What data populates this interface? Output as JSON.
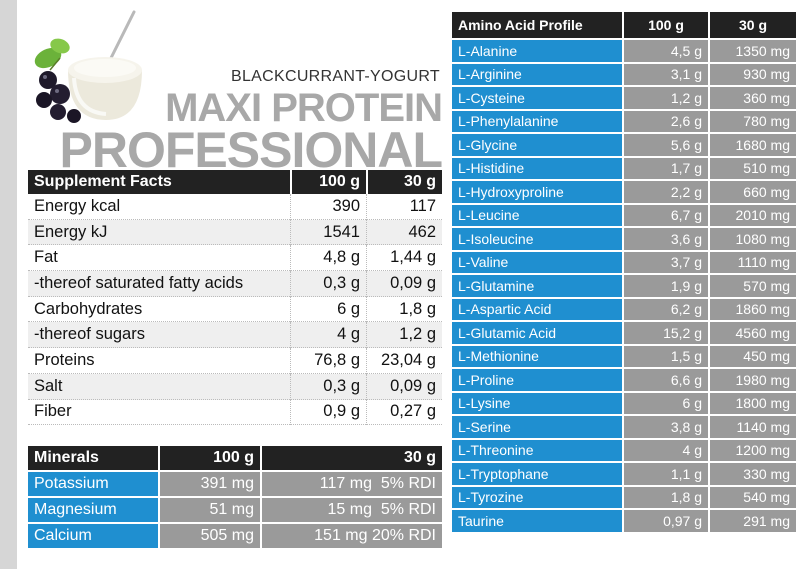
{
  "product": {
    "flavor": "BLACKCURRANT-YOGURT",
    "brand_line1": "MAXI PROTEIN",
    "brand_line2": "PROFESSIONAL"
  },
  "supplement_facts": {
    "headers": [
      "Supplement Facts",
      "100 g",
      "30 g"
    ],
    "rows": [
      [
        "Energy  kcal",
        "390",
        "117"
      ],
      [
        "Energy  kJ",
        "1541",
        "462"
      ],
      [
        "Fat",
        "4,8 g",
        "1,44 g"
      ],
      [
        "-thereof saturated fatty acids",
        "0,3 g",
        "0,09 g"
      ],
      [
        "Carbohydrates",
        "6 g",
        "1,8 g"
      ],
      [
        "-thereof sugars",
        "4 g",
        "1,2 g"
      ],
      [
        "Proteins",
        "76,8 g",
        "23,04 g"
      ],
      [
        "Salt",
        "0,3 g",
        "0,09 g"
      ],
      [
        "Fiber",
        "0,9 g",
        "0,27 g"
      ]
    ]
  },
  "minerals": {
    "headers": [
      "Minerals",
      "100 g",
      "30 g"
    ],
    "rows": [
      [
        "Potassium",
        "391 mg",
        "117 mg  5% RDI"
      ],
      [
        "Magnesium",
        "51 mg",
        "15 mg  5% RDI"
      ],
      [
        "Calcium",
        "505 mg",
        "151 mg 20% RDI"
      ]
    ]
  },
  "amino_acids": {
    "headers": [
      "Amino Acid Profile",
      "100 g",
      "30 g"
    ],
    "rows": [
      [
        "L-Alanine",
        "4,5 g",
        "1350 mg"
      ],
      [
        "L-Arginine",
        "3,1 g",
        "930 mg"
      ],
      [
        "L-Cysteine",
        "1,2 g",
        "360 mg"
      ],
      [
        "L-Phenylalanine",
        "2,6 g",
        "780 mg"
      ],
      [
        "L-Glycine",
        "5,6 g",
        "1680 mg"
      ],
      [
        "L-Histidine",
        "1,7 g",
        "510 mg"
      ],
      [
        "L-Hydroxyproline",
        "2,2 g",
        "660 mg"
      ],
      [
        "L-Leucine",
        "6,7 g",
        "2010 mg"
      ],
      [
        "L-Isoleucine",
        "3,6 g",
        "1080 mg"
      ],
      [
        "L-Valine",
        "3,7 g",
        "1110 mg"
      ],
      [
        "L-Glutamine",
        "1,9 g",
        "570 mg"
      ],
      [
        "L-Aspartic Acid",
        "6,2 g",
        "1860 mg"
      ],
      [
        "L-Glutamic Acid",
        "15,2 g",
        "4560 mg"
      ],
      [
        "L-Methionine",
        "1,5 g",
        "450 mg"
      ],
      [
        "L-Proline",
        "6,6 g",
        "1980 mg"
      ],
      [
        "L-Lysine",
        "6 g",
        "1800 mg"
      ],
      [
        "L-Serine",
        "3,8 g",
        "1140 mg"
      ],
      [
        "L-Threonine",
        "4 g",
        "1200 mg"
      ],
      [
        "L-Tryptophane",
        "1,1 g",
        "330 mg"
      ],
      [
        "L-Tyrozine",
        "1,8 g",
        "540 mg"
      ],
      [
        "Taurine",
        "0,97 g",
        "291 mg"
      ]
    ]
  },
  "colors": {
    "header_bg": "#222222",
    "name_cell_blue": "#1f8fd0",
    "value_cell_gray": "#9a9a9a",
    "brand_gray": "#a8a8a8",
    "side_bar": "#d6d6d6"
  },
  "icons": {
    "product_image": "yogurt-pot-with-blackcurrants-icon"
  }
}
